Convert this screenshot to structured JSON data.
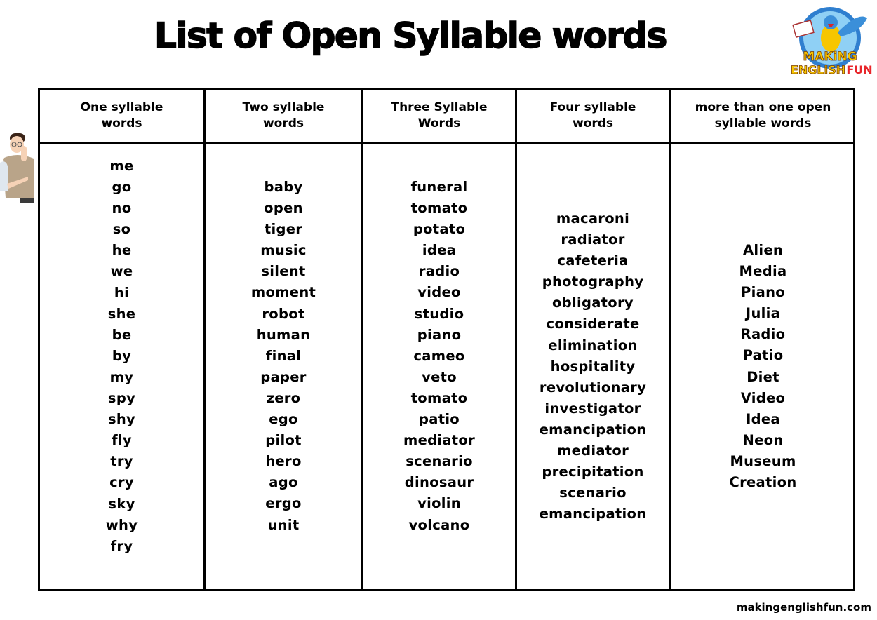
{
  "title": "List of Open Syllable words",
  "logo": {
    "line1": "MAKiNG",
    "line2": "ENGLiSH",
    "line3": "FUN"
  },
  "columns": [
    {
      "header": "One syllable\nwords",
      "words": [
        "me",
        "go",
        "no",
        "so",
        "he",
        "we",
        "hi",
        "she",
        "be",
        "by",
        "my",
        "spy",
        "shy",
        "fly",
        "try",
        "cry",
        "sky",
        "why",
        "fry"
      ]
    },
    {
      "header": "Two  syllable\nwords",
      "words": [
        "baby",
        "open",
        "tiger",
        "music",
        "silent",
        "moment",
        "robot",
        "human",
        "final",
        "paper",
        "zero",
        "ego",
        "pilot",
        "hero",
        "ago",
        "ergo",
        "unit"
      ]
    },
    {
      "header": "Three Syllable\nWords",
      "words": [
        "funeral",
        "tomato",
        "potato",
        "idea",
        "radio",
        "video",
        "studio",
        "piano",
        "cameo",
        "veto",
        "tomato",
        "patio",
        "mediator",
        "scenario",
        "dinosaur",
        "violin",
        "volcano"
      ]
    },
    {
      "header": "Four syllable\nwords",
      "words": [
        "macaroni",
        "radiator",
        "cafeteria",
        "photography",
        "obligatory",
        "considerate",
        "elimination",
        "hospitality",
        "revolutionary",
        "investigator",
        "emancipation",
        "mediator",
        "precipitation",
        "scenario",
        "emancipation"
      ]
    },
    {
      "header": "more than one open\nsyllable words",
      "words": [
        "Alien",
        "Media",
        "Piano",
        "Julia",
        "Radio",
        "Patio",
        "Diet",
        "Video",
        "Idea",
        "Neon",
        "Museum",
        "Creation"
      ]
    }
  ],
  "footer": "makingenglishfun.com",
  "colors": {
    "text": "#000000",
    "logo_yellow": "#f7c600",
    "logo_red": "#e8262b",
    "logo_blue": "#3b8fd9"
  }
}
